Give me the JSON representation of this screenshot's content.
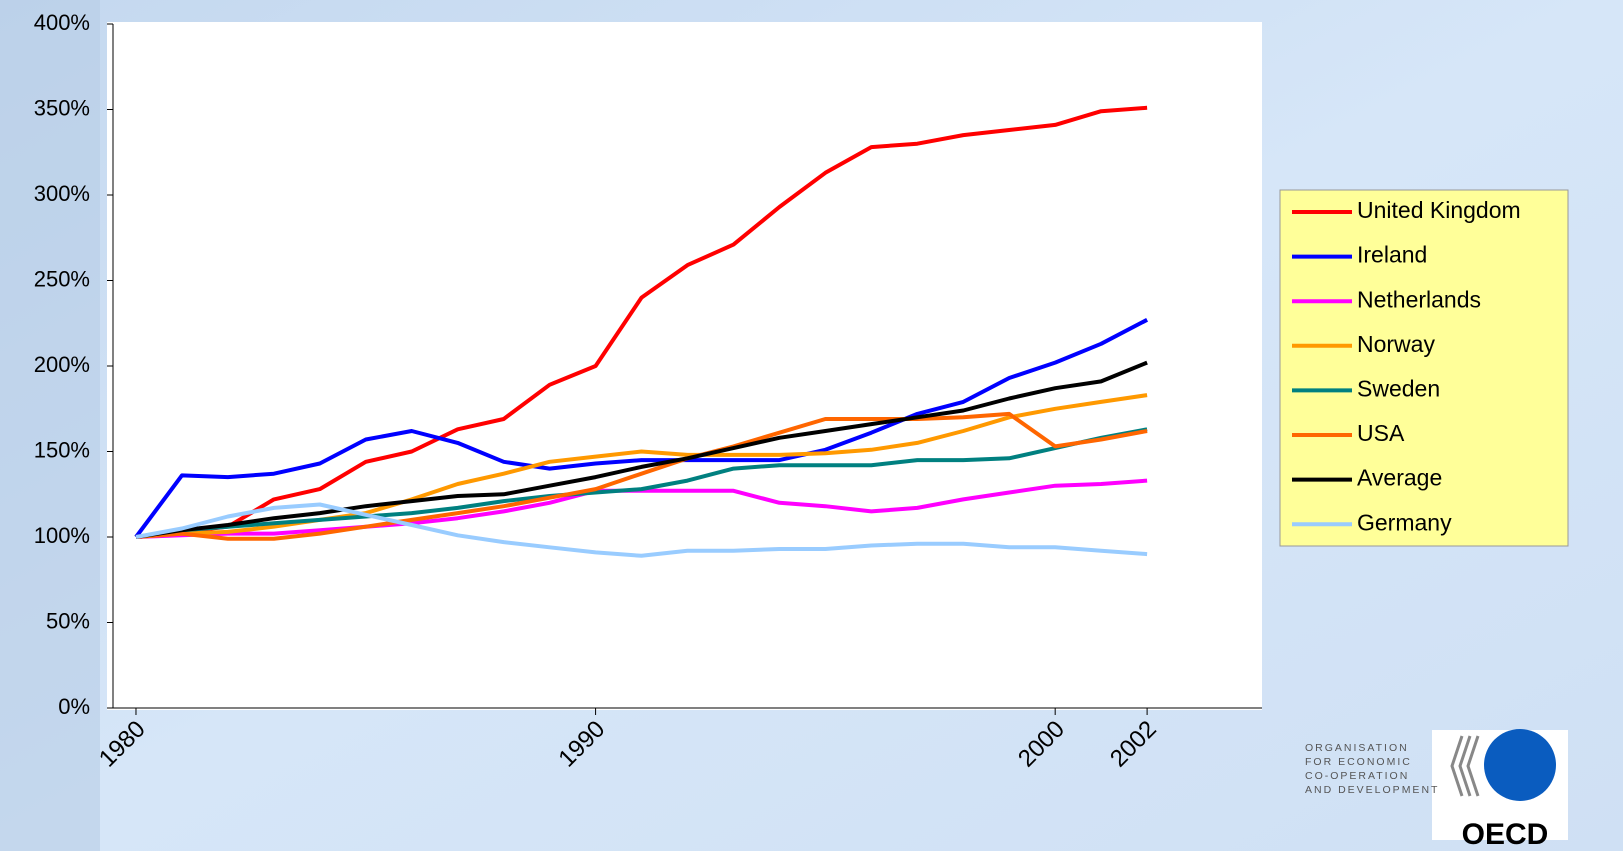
{
  "chart_data": {
    "type": "line",
    "x": [
      1980,
      1981,
      1982,
      1983,
      1984,
      1985,
      1986,
      1987,
      1988,
      1989,
      1990,
      1991,
      1992,
      1993,
      1994,
      1995,
      1996,
      1997,
      1998,
      1999,
      2000,
      2001,
      2002
    ],
    "xlim": [
      1979.5,
      2004.5
    ],
    "xticks": [
      1980,
      1990,
      2000,
      2002
    ],
    "ylim": [
      0,
      400
    ],
    "yticks": [
      {
        "value": 0,
        "label": "0%"
      },
      {
        "value": 50,
        "label": "50%"
      },
      {
        "value": 100,
        "label": "100%"
      },
      {
        "value": 150,
        "label": "150%"
      },
      {
        "value": 200,
        "label": "200%"
      },
      {
        "value": 250,
        "label": "250%"
      },
      {
        "value": 300,
        "label": "300%"
      },
      {
        "value": 350,
        "label": "350%"
      },
      {
        "value": 400,
        "label": "400%"
      }
    ],
    "grid": false,
    "legend": "right",
    "series": [
      {
        "name": "United Kingdom",
        "color": "#ff0000",
        "values": [
          100,
          103,
          106,
          122,
          128,
          144,
          150,
          163,
          169,
          189,
          200,
          240,
          259,
          271,
          293,
          313,
          328,
          330,
          335,
          338,
          341,
          349,
          351
        ]
      },
      {
        "name": "Ireland",
        "color": "#0000ff",
        "values": [
          100,
          136,
          135,
          137,
          143,
          157,
          162,
          155,
          144,
          140,
          143,
          145,
          145,
          145,
          145,
          151,
          161,
          172,
          179,
          193,
          202,
          213,
          227
        ]
      },
      {
        "name": "Netherlands",
        "color": "#ff00ff",
        "values": [
          100,
          101,
          102,
          102,
          104,
          106,
          108,
          111,
          115,
          120,
          127,
          127,
          127,
          127,
          120,
          118,
          115,
          117,
          122,
          126,
          130,
          131,
          133
        ]
      },
      {
        "name": "Norway",
        "color": "#ff9900",
        "values": [
          100,
          102,
          103,
          106,
          110,
          114,
          122,
          131,
          137,
          144,
          147,
          150,
          148,
          148,
          148,
          149,
          151,
          155,
          162,
          170,
          175,
          179,
          183
        ]
      },
      {
        "name": "Sweden",
        "color": "#008080",
        "values": [
          100,
          104,
          106,
          108,
          110,
          112,
          114,
          117,
          121,
          124,
          126,
          128,
          133,
          140,
          142,
          142,
          142,
          145,
          145,
          146,
          152,
          158,
          163
        ]
      },
      {
        "name": "USA",
        "color": "#ff6600",
        "values": [
          100,
          102,
          99,
          99,
          102,
          106,
          110,
          114,
          118,
          123,
          128,
          137,
          146,
          153,
          161,
          169,
          169,
          169,
          170,
          172,
          153,
          157,
          162
        ]
      },
      {
        "name": "Average",
        "color": "#000000",
        "values": [
          100,
          104,
          107,
          111,
          114,
          118,
          121,
          124,
          125,
          130,
          135,
          141,
          146,
          152,
          158,
          162,
          166,
          170,
          174,
          181,
          187,
          191,
          202
        ]
      },
      {
        "name": "Germany",
        "color": "#99ccff",
        "values": [
          100,
          105,
          112,
          117,
          119,
          113,
          107,
          101,
          97,
          94,
          91,
          89,
          92,
          92,
          93,
          93,
          95,
          96,
          96,
          94,
          94,
          92,
          90
        ]
      }
    ]
  },
  "logo": {
    "organisation": [
      "ORGANISATION",
      "FOR ECONOMIC",
      "CO-OPERATION",
      "AND DEVELOPMENT"
    ],
    "mark": "OECD"
  }
}
